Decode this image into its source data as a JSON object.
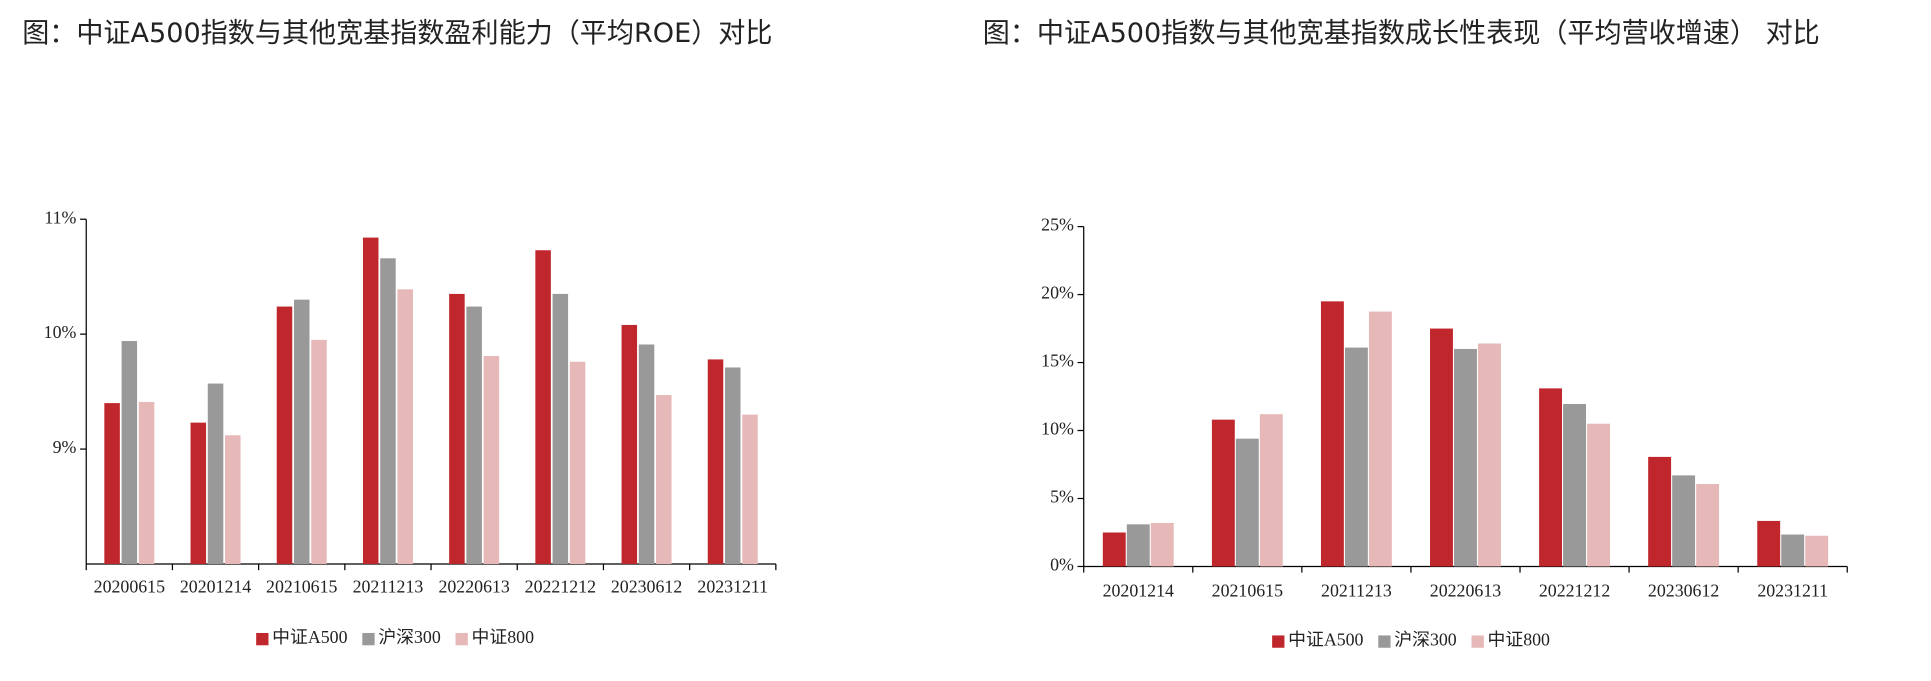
{
  "chart_data": [
    {
      "type": "bar",
      "title": "图：中证A500指数与其他宽基指数盈利能力（平均ROE）对比",
      "categories": [
        "20200615",
        "20201214",
        "20210615",
        "20211213",
        "20220613",
        "20221212",
        "20230612",
        "20231211"
      ],
      "series": [
        {
          "name": "中证A500",
          "color": "#c0272d",
          "values": [
            9.4,
            9.23,
            10.24,
            10.84,
            10.35,
            10.73,
            10.08,
            9.78
          ]
        },
        {
          "name": "沪深300",
          "color": "#999999",
          "values": [
            9.94,
            9.57,
            10.3,
            10.66,
            10.24,
            10.35,
            9.91,
            9.71
          ]
        },
        {
          "name": "中证800",
          "color": "#e6b8b7",
          "values": [
            9.41,
            9.12,
            9.95,
            10.39,
            9.81,
            9.76,
            9.47,
            9.3
          ]
        }
      ],
      "ylim": [
        8,
        11
      ],
      "yticks": [
        {
          "value": 9,
          "label": "9%"
        },
        {
          "value": 10,
          "label": "10%"
        },
        {
          "value": 11,
          "label": "11%"
        }
      ],
      "legend": "bottom"
    },
    {
      "type": "bar",
      "title": "图：中证A500指数与其他宽基指数成长性表现（平均营收增速） 对比",
      "categories": [
        "20201214",
        "20210615",
        "20211213",
        "20220613",
        "20221212",
        "20230612",
        "20231211"
      ],
      "series": [
        {
          "name": "中证A500",
          "color": "#c0272d",
          "values": [
            2.5,
            10.8,
            19.5,
            17.5,
            13.1,
            8.06,
            3.35
          ]
        },
        {
          "name": "沪深300",
          "color": "#999999",
          "values": [
            3.1,
            9.4,
            16.1,
            16.0,
            11.95,
            6.7,
            2.35
          ]
        },
        {
          "name": "中证800",
          "color": "#e6b8b7",
          "values": [
            3.2,
            11.2,
            18.75,
            16.4,
            10.5,
            6.07,
            2.26
          ]
        }
      ],
      "ylim": [
        0,
        25
      ],
      "yticks": [
        {
          "value": 0,
          "label": "0%"
        },
        {
          "value": 5,
          "label": "5%"
        },
        {
          "value": 10,
          "label": "10%"
        },
        {
          "value": 15,
          "label": "15%"
        },
        {
          "value": 20,
          "label": "20%"
        },
        {
          "value": 25,
          "label": "25%"
        }
      ],
      "legend": "bottom"
    }
  ]
}
